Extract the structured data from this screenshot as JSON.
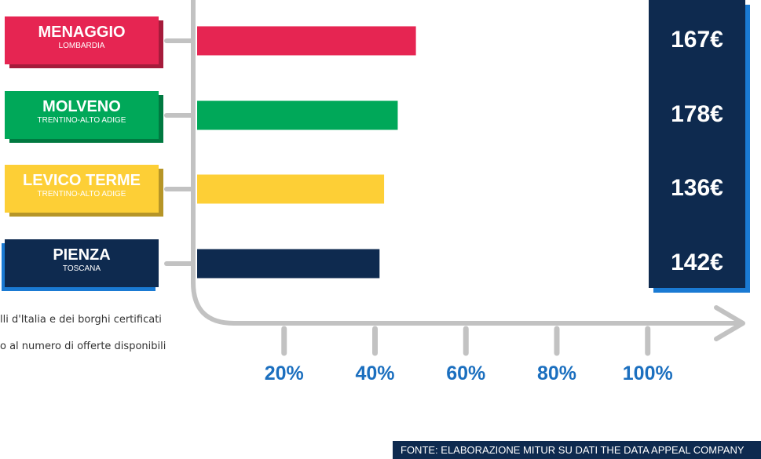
{
  "chart_data": {
    "type": "bar",
    "orientation": "horizontal",
    "categories": [
      {
        "name": "MENAGGIO",
        "region": "LOMBARDIA",
        "color": "#e62552",
        "price": "167€"
      },
      {
        "name": "MOLVENO",
        "region": "TRENTINO-ALTO ADIGE",
        "color": "#00a859",
        "price": "178€"
      },
      {
        "name": "LEVICO TERME",
        "region": "TRENTINO-ALTO ADIGE",
        "color": "#fdcf36",
        "price": "136€"
      },
      {
        "name": "PIENZA",
        "region": "TOSCANA",
        "color": "#0e2a4f",
        "price": "142€"
      }
    ],
    "values": [
      49,
      45,
      42,
      41
    ],
    "x_ticks": [
      "20%",
      "40%",
      "60%",
      "80%",
      "100%"
    ],
    "xlim": [
      0,
      100
    ],
    "grid": false,
    "legend": "none"
  },
  "notes": [
    "lli d'Italia e dei borghi certificati",
    "o al numero di offerte disponibili"
  ],
  "source": "FONTE: ELABORAZIONE MITUR SU DATI THE DATA APPEAL COMPANY",
  "colors": {
    "navy": "#0e2a4f",
    "blue_accent": "#1a7ad3",
    "axis_gray": "#c2c2c2"
  }
}
